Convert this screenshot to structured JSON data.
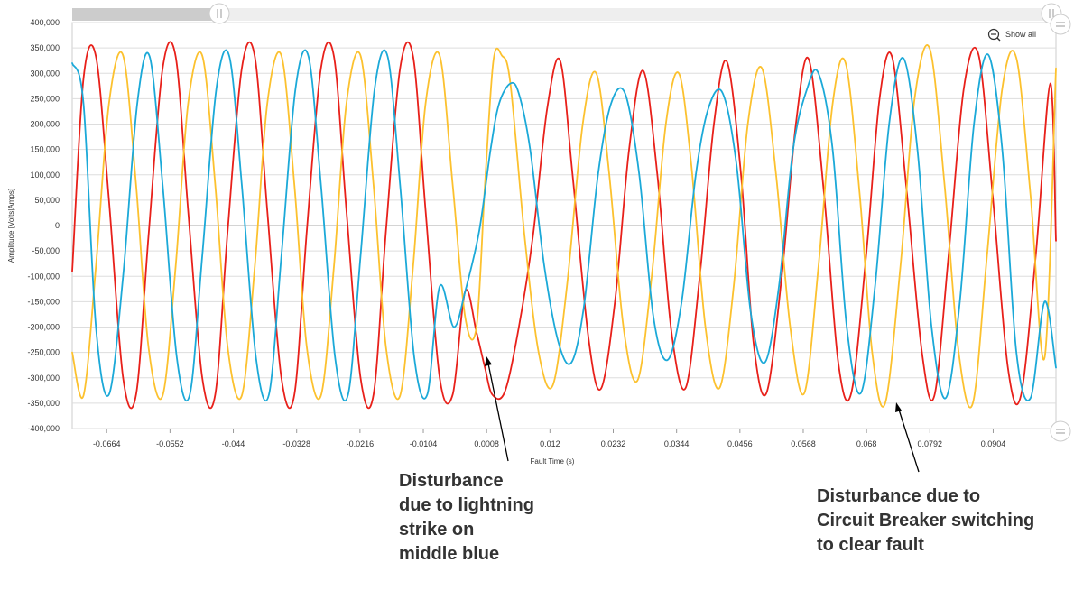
{
  "colors": {
    "red": "#e8201a",
    "yellow": "#fcc12e",
    "blue": "#1ba9d8",
    "grid": "#dddddd",
    "zero_line": "#aaaaaa"
  },
  "toolbar": {
    "show_all_label": "Show all",
    "show_all_icon": "zoom-out-icon"
  },
  "annotations": {
    "lightning": "Disturbance due to lightning strike on middle blue",
    "breaker": "Disturbance due to Circuit Breaker switching to clear fault"
  },
  "chart_data": {
    "type": "line",
    "xlabel": "Fault Time (s)",
    "ylabel": "Amplitude [Volts|Amps]",
    "xlim": [
      -0.0725,
      0.1015
    ],
    "ylim": [
      -400000,
      400000
    ],
    "grid": "horizontal",
    "legend": "none",
    "x_ticks": [
      "-0.0664",
      "-0.0552",
      "-0.044",
      "-0.0328",
      "-0.0216",
      "-0.0104",
      "0.0008",
      "0.012",
      "0.0232",
      "0.0344",
      "0.0456",
      "0.0568",
      "0.068",
      "0.0792",
      "0.0904"
    ],
    "y_ticks": [
      "400,000",
      "350,000",
      "300,000",
      "250,000",
      "200,000",
      "150,000",
      "100,000",
      "50,000",
      "0",
      "-50,000",
      "-100,000",
      "-150,000",
      "-200,000",
      "-250,000",
      "-300,000",
      "-350,000",
      "-400,000"
    ],
    "series": [
      {
        "color": "#e8201a",
        "points": [
          [
            -0.0725,
            -90000
          ],
          [
            -0.0705,
            290000
          ],
          [
            -0.0683,
            333000
          ],
          [
            -0.066,
            50000
          ],
          [
            -0.0635,
            -300000
          ],
          [
            -0.0612,
            -333000
          ],
          [
            -0.059,
            -20000
          ],
          [
            -0.0565,
            310000
          ],
          [
            -0.0542,
            333000
          ],
          [
            -0.052,
            30000
          ],
          [
            -0.0495,
            -300000
          ],
          [
            -0.0472,
            -333000
          ],
          [
            -0.045,
            -10000
          ],
          [
            -0.0425,
            310000
          ],
          [
            -0.0402,
            333000
          ],
          [
            -0.038,
            30000
          ],
          [
            -0.0355,
            -300000
          ],
          [
            -0.0332,
            -333000
          ],
          [
            -0.031,
            -10000
          ],
          [
            -0.0285,
            310000
          ],
          [
            -0.0262,
            333000
          ],
          [
            -0.024,
            30000
          ],
          [
            -0.0215,
            -300000
          ],
          [
            -0.0192,
            -333000
          ],
          [
            -0.017,
            -10000
          ],
          [
            -0.0145,
            310000
          ],
          [
            -0.0122,
            333000
          ],
          [
            -0.01,
            30000
          ],
          [
            -0.0075,
            -300000
          ],
          [
            -0.0052,
            -333000
          ],
          [
            -0.003,
            -130000
          ],
          [
            -0.001,
            -210000
          ],
          [
            0.0005,
            -280000
          ],
          [
            0.0018,
            -333000
          ],
          [
            0.004,
            -328000
          ],
          [
            0.0065,
            -200000
          ],
          [
            0.009,
            -20000
          ],
          [
            0.0115,
            230000
          ],
          [
            0.0138,
            325000
          ],
          [
            0.016,
            100000
          ],
          [
            0.0188,
            -220000
          ],
          [
            0.021,
            -322000
          ],
          [
            0.0235,
            -150000
          ],
          [
            0.026,
            150000
          ],
          [
            0.0285,
            305000
          ],
          [
            0.031,
            100000
          ],
          [
            0.0335,
            -210000
          ],
          [
            0.036,
            -320000
          ],
          [
            0.0385,
            -100000
          ],
          [
            0.041,
            200000
          ],
          [
            0.0433,
            323000
          ],
          [
            0.0458,
            100000
          ],
          [
            0.048,
            -230000
          ],
          [
            0.0503,
            -330000
          ],
          [
            0.053,
            -100000
          ],
          [
            0.0555,
            200000
          ],
          [
            0.0578,
            327000
          ],
          [
            0.0605,
            60000
          ],
          [
            0.063,
            -270000
          ],
          [
            0.0653,
            -330000
          ],
          [
            0.068,
            -50000
          ],
          [
            0.0703,
            250000
          ],
          [
            0.0725,
            333000
          ],
          [
            0.075,
            80000
          ],
          [
            0.0778,
            -250000
          ],
          [
            0.08,
            -335000
          ],
          [
            0.0825,
            -60000
          ],
          [
            0.0852,
            270000
          ],
          [
            0.0878,
            337000
          ],
          [
            0.0903,
            60000
          ],
          [
            0.093,
            -280000
          ],
          [
            0.0953,
            -335000
          ],
          [
            0.098,
            -50000
          ],
          [
            0.1005,
            280000
          ],
          [
            0.1015,
            -30000
          ]
        ]
      },
      {
        "color": "#fcc12e",
        "points": [
          [
            -0.0725,
            -250000
          ],
          [
            -0.0705,
            -335000
          ],
          [
            -0.0683,
            -80000
          ],
          [
            -0.066,
            240000
          ],
          [
            -0.0635,
            335000
          ],
          [
            -0.0612,
            80000
          ],
          [
            -0.059,
            -240000
          ],
          [
            -0.0565,
            -335000
          ],
          [
            -0.0542,
            -80000
          ],
          [
            -0.052,
            240000
          ],
          [
            -0.0495,
            335000
          ],
          [
            -0.0472,
            80000
          ],
          [
            -0.045,
            -240000
          ],
          [
            -0.0425,
            -335000
          ],
          [
            -0.0402,
            -80000
          ],
          [
            -0.038,
            240000
          ],
          [
            -0.0355,
            335000
          ],
          [
            -0.0332,
            80000
          ],
          [
            -0.031,
            -240000
          ],
          [
            -0.0285,
            -335000
          ],
          [
            -0.0262,
            -80000
          ],
          [
            -0.024,
            240000
          ],
          [
            -0.0215,
            335000
          ],
          [
            -0.0192,
            80000
          ],
          [
            -0.017,
            -240000
          ],
          [
            -0.0145,
            -335000
          ],
          [
            -0.0122,
            -80000
          ],
          [
            -0.01,
            240000
          ],
          [
            -0.0075,
            335000
          ],
          [
            -0.0052,
            80000
          ],
          [
            -0.003,
            -180000
          ],
          [
            -0.001,
            -200000
          ],
          [
            0.0005,
            80000
          ],
          [
            0.002,
            325000
          ],
          [
            0.0035,
            335000
          ],
          [
            0.005,
            280000
          ],
          [
            0.0075,
            -20000
          ],
          [
            0.01,
            -250000
          ],
          [
            0.0125,
            -315000
          ],
          [
            0.015,
            -120000
          ],
          [
            0.0178,
            200000
          ],
          [
            0.0202,
            300000
          ],
          [
            0.0225,
            100000
          ],
          [
            0.025,
            -200000
          ],
          [
            0.0275,
            -305000
          ],
          [
            0.03,
            -100000
          ],
          [
            0.0325,
            200000
          ],
          [
            0.0348,
            300000
          ],
          [
            0.037,
            120000
          ],
          [
            0.0395,
            -200000
          ],
          [
            0.042,
            -320000
          ],
          [
            0.0445,
            -120000
          ],
          [
            0.047,
            200000
          ],
          [
            0.0495,
            310000
          ],
          [
            0.052,
            100000
          ],
          [
            0.0545,
            -200000
          ],
          [
            0.057,
            -330000
          ],
          [
            0.0595,
            -80000
          ],
          [
            0.062,
            240000
          ],
          [
            0.0643,
            320000
          ],
          [
            0.0668,
            60000
          ],
          [
            0.069,
            -250000
          ],
          [
            0.0713,
            -350000
          ],
          [
            0.074,
            -80000
          ],
          [
            0.0765,
            250000
          ],
          [
            0.0792,
            348000
          ],
          [
            0.0818,
            80000
          ],
          [
            0.0843,
            -250000
          ],
          [
            0.0868,
            -350000
          ],
          [
            0.0893,
            -60000
          ],
          [
            0.092,
            270000
          ],
          [
            0.0945,
            330000
          ],
          [
            0.097,
            60000
          ],
          [
            0.0995,
            -260000
          ],
          [
            0.1015,
            310000
          ]
        ]
      },
      {
        "color": "#1ba9d8",
        "points": [
          [
            -0.0725,
            320000
          ],
          [
            -0.0705,
            240000
          ],
          [
            -0.0683,
            -200000
          ],
          [
            -0.066,
            -333000
          ],
          [
            -0.0635,
            -100000
          ],
          [
            -0.061,
            240000
          ],
          [
            -0.0588,
            333000
          ],
          [
            -0.0565,
            80000
          ],
          [
            -0.054,
            -260000
          ],
          [
            -0.0517,
            -333000
          ],
          [
            -0.0495,
            -60000
          ],
          [
            -0.047,
            270000
          ],
          [
            -0.0447,
            333000
          ],
          [
            -0.0425,
            80000
          ],
          [
            -0.04,
            -260000
          ],
          [
            -0.0377,
            -333000
          ],
          [
            -0.0355,
            -60000
          ],
          [
            -0.033,
            270000
          ],
          [
            -0.0307,
            333000
          ],
          [
            -0.0285,
            80000
          ],
          [
            -0.026,
            -260000
          ],
          [
            -0.0237,
            -333000
          ],
          [
            -0.0215,
            -60000
          ],
          [
            -0.019,
            270000
          ],
          [
            -0.0167,
            333000
          ],
          [
            -0.0145,
            80000
          ],
          [
            -0.012,
            -260000
          ],
          [
            -0.0097,
            -333000
          ],
          [
            -0.0075,
            -120000
          ],
          [
            -0.005,
            -200000
          ],
          [
            -0.003,
            -130000
          ],
          [
            -0.0005,
            -10000
          ],
          [
            0.0015,
            150000
          ],
          [
            0.003,
            240000
          ],
          [
            0.005,
            280000
          ],
          [
            0.0065,
            260000
          ],
          [
            0.0085,
            150000
          ],
          [
            0.011,
            -80000
          ],
          [
            0.0135,
            -230000
          ],
          [
            0.0158,
            -270000
          ],
          [
            0.018,
            -160000
          ],
          [
            0.0205,
            100000
          ],
          [
            0.0228,
            240000
          ],
          [
            0.0253,
            260000
          ],
          [
            0.0278,
            100000
          ],
          [
            0.0303,
            -180000
          ],
          [
            0.0328,
            -265000
          ],
          [
            0.0353,
            -150000
          ],
          [
            0.0378,
            100000
          ],
          [
            0.04,
            230000
          ],
          [
            0.0425,
            262000
          ],
          [
            0.045,
            120000
          ],
          [
            0.0475,
            -170000
          ],
          [
            0.05,
            -270000
          ],
          [
            0.0525,
            -120000
          ],
          [
            0.055,
            150000
          ],
          [
            0.0575,
            270000
          ],
          [
            0.0595,
            300000
          ],
          [
            0.062,
            150000
          ],
          [
            0.0645,
            -200000
          ],
          [
            0.067,
            -330000
          ],
          [
            0.0695,
            -120000
          ],
          [
            0.072,
            200000
          ],
          [
            0.0745,
            330000
          ],
          [
            0.077,
            150000
          ],
          [
            0.0795,
            -200000
          ],
          [
            0.082,
            -340000
          ],
          [
            0.0845,
            -150000
          ],
          [
            0.087,
            200000
          ],
          [
            0.0895,
            337000
          ],
          [
            0.092,
            150000
          ],
          [
            0.0945,
            -250000
          ],
          [
            0.097,
            -340000
          ],
          [
            0.0995,
            -150000
          ],
          [
            0.1015,
            -280000
          ]
        ]
      }
    ]
  }
}
